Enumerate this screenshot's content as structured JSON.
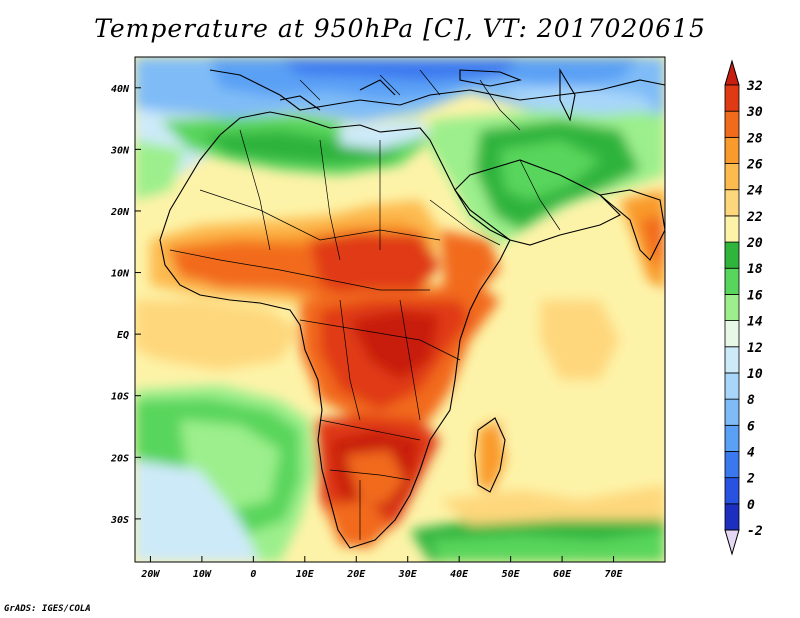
{
  "title": "Temperature at 950hPa [C], VT: 2017020615",
  "footer": "GrADS: IGES/COLA",
  "map": {
    "region": "Africa, Arabia, southern Europe",
    "lon_range": [
      -23,
      80
    ],
    "lat_range": [
      -37,
      45
    ],
    "lon_ticks": [
      {
        "lon": -20,
        "label": "20W"
      },
      {
        "lon": -10,
        "label": "10W"
      },
      {
        "lon": 0,
        "label": "0"
      },
      {
        "lon": 10,
        "label": "10E"
      },
      {
        "lon": 20,
        "label": "20E"
      },
      {
        "lon": 30,
        "label": "30E"
      },
      {
        "lon": 40,
        "label": "40E"
      },
      {
        "lon": 50,
        "label": "50E"
      },
      {
        "lon": 60,
        "label": "60E"
      },
      {
        "lon": 70,
        "label": "70E"
      }
    ],
    "lat_ticks": [
      {
        "lat": 40,
        "label": "40N"
      },
      {
        "lat": 30,
        "label": "30N"
      },
      {
        "lat": 20,
        "label": "20N"
      },
      {
        "lat": 10,
        "label": "10N"
      },
      {
        "lat": 0,
        "label": "EQ"
      },
      {
        "lat": -10,
        "label": "10S"
      },
      {
        "lat": -20,
        "label": "20S"
      },
      {
        "lat": -30,
        "label": "30S"
      }
    ]
  },
  "colorbar": {
    "levels": [
      {
        "value": -2,
        "label": "-2",
        "color": "#1c1f8a"
      },
      {
        "value": 0,
        "label": "0",
        "color": "#1c2fc0"
      },
      {
        "value": 2,
        "label": "2",
        "color": "#2852e0"
      },
      {
        "value": 4,
        "label": "4",
        "color": "#3a78f0"
      },
      {
        "value": 6,
        "label": "6",
        "color": "#5aa0f5"
      },
      {
        "value": 8,
        "label": "8",
        "color": "#7fbcf7"
      },
      {
        "value": 10,
        "label": "10",
        "color": "#a8d6fa"
      },
      {
        "value": 12,
        "label": "12",
        "color": "#cdeaf9"
      },
      {
        "value": 14,
        "label": "14",
        "color": "#e8f8e6"
      },
      {
        "value": 16,
        "label": "16",
        "color": "#9cef8c"
      },
      {
        "value": 18,
        "label": "18",
        "color": "#58d55c"
      },
      {
        "value": 20,
        "label": "20",
        "color": "#2fb43c"
      },
      {
        "value": 22,
        "label": "22",
        "color": "#fdf3a8"
      },
      {
        "value": 24,
        "label": "24",
        "color": "#fed77c"
      },
      {
        "value": 26,
        "label": "26",
        "color": "#fdba4f"
      },
      {
        "value": 28,
        "label": "28",
        "color": "#f99a2c"
      },
      {
        "value": 30,
        "label": "30",
        "color": "#f26a1b"
      },
      {
        "value": 32,
        "label": "32",
        "color": "#e03a14"
      }
    ],
    "over_color": "#c81e10",
    "under_color": "#e4d8f4"
  }
}
